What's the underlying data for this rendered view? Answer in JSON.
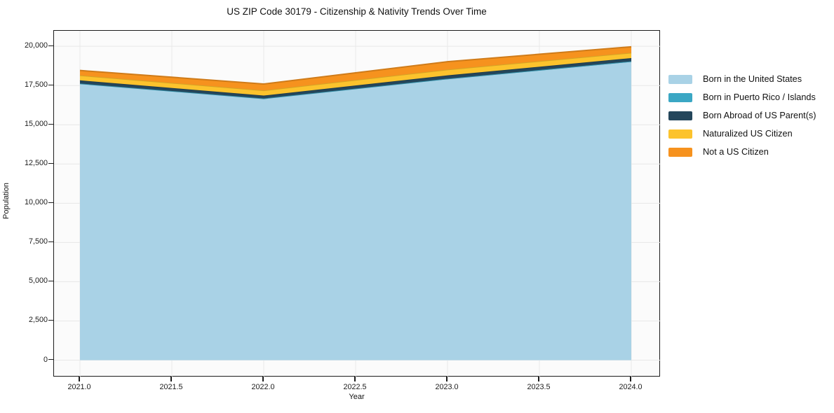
{
  "title": "US ZIP Code 30179 - Citizenship & Nativity Trends Over Time",
  "axes": {
    "x_label": "Year",
    "y_label": "Population",
    "x_tick_labels": [
      "2021.0",
      "2021.5",
      "2022.0",
      "2022.5",
      "2023.0",
      "2023.5",
      "2024.0"
    ],
    "x_tick_values": [
      2021.0,
      2021.5,
      2022.0,
      2022.5,
      2023.0,
      2023.5,
      2024.0
    ],
    "y_tick_labels": [
      "0",
      "2,500",
      "5,000",
      "7,500",
      "10,000",
      "12,500",
      "15,000",
      "17,500",
      "20,000"
    ],
    "y_tick_values": [
      0,
      2500,
      5000,
      7500,
      10000,
      12500,
      15000,
      17500,
      20000
    ]
  },
  "colors": {
    "plot_background": "#fbfbfb",
    "gridline": "#e8e8e8",
    "spine": "#1c1c1c"
  },
  "chart_data": {
    "type": "area",
    "stacked": true,
    "title": "US ZIP Code 30179 - Citizenship & Nativity Trends Over Time",
    "xlabel": "Year",
    "ylabel": "Population",
    "x": [
      2021,
      2022,
      2023,
      2024
    ],
    "series": [
      {
        "name": "Born in the United States",
        "color": "#a9d2e6",
        "values": [
          17600,
          16650,
          17900,
          19000
        ]
      },
      {
        "name": "Born in Puerto Rico / Islands",
        "color": "#3ba7c4",
        "values": [
          30,
          30,
          40,
          50
        ]
      },
      {
        "name": "Born Abroad of US Parent(s)",
        "color": "#24465b",
        "values": [
          200,
          180,
          210,
          200
        ]
      },
      {
        "name": "Naturalized US Citizen",
        "color": "#fcc32d",
        "values": [
          320,
          330,
          370,
          340
        ]
      },
      {
        "name": "Not a US Citizen",
        "color": "#f6921e",
        "values": [
          310,
          410,
          500,
          380
        ]
      }
    ],
    "totals": [
      18460,
      17600,
      19020,
      19970
    ],
    "xlim": [
      2020.86,
      2024.16
    ],
    "ylim": [
      -1100,
      21000
    ],
    "grid": true,
    "legend_position": "right"
  }
}
